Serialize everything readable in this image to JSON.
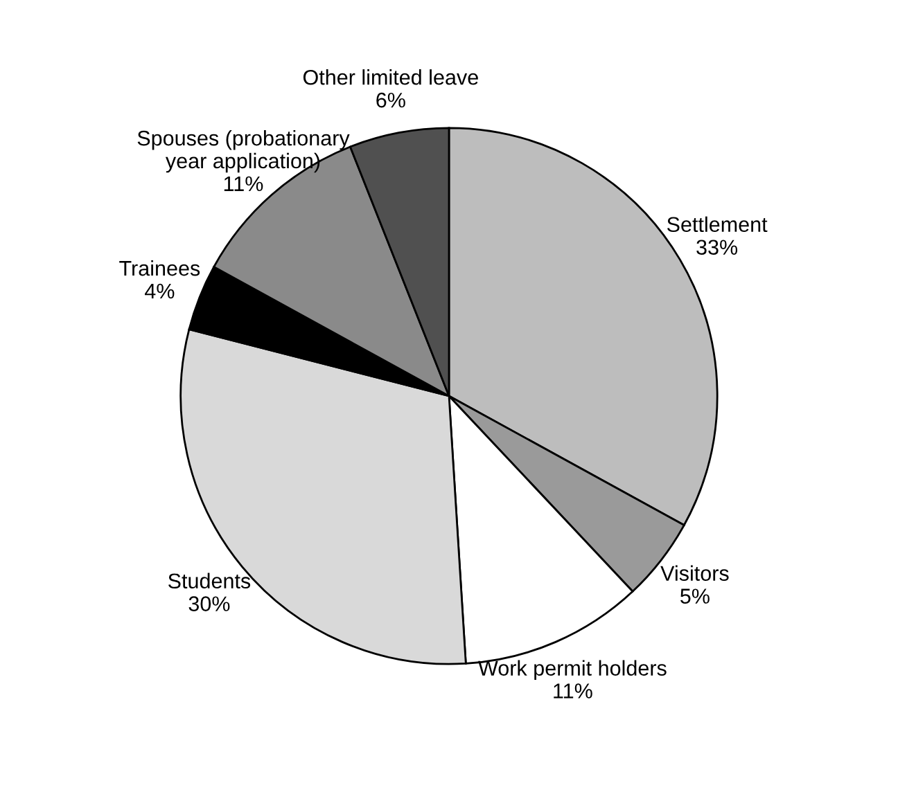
{
  "chart_data": {
    "type": "pie",
    "categories": [
      "Settlement",
      "Visitors",
      "Work permit holders",
      "Students",
      "Trainees",
      "Spouses (probationary\nyear application)",
      "Other limited leave"
    ],
    "values": [
      33,
      5,
      11,
      30,
      4,
      11,
      6
    ],
    "value_labels": [
      "33%",
      "5%",
      "11%",
      "30%",
      "4%",
      "11%",
      "6%"
    ],
    "colors": [
      "#bdbdbd",
      "#9a9a9a",
      "#ffffff",
      "#d9d9d9",
      "#000000",
      "#8a8a8a",
      "#505050"
    ]
  }
}
